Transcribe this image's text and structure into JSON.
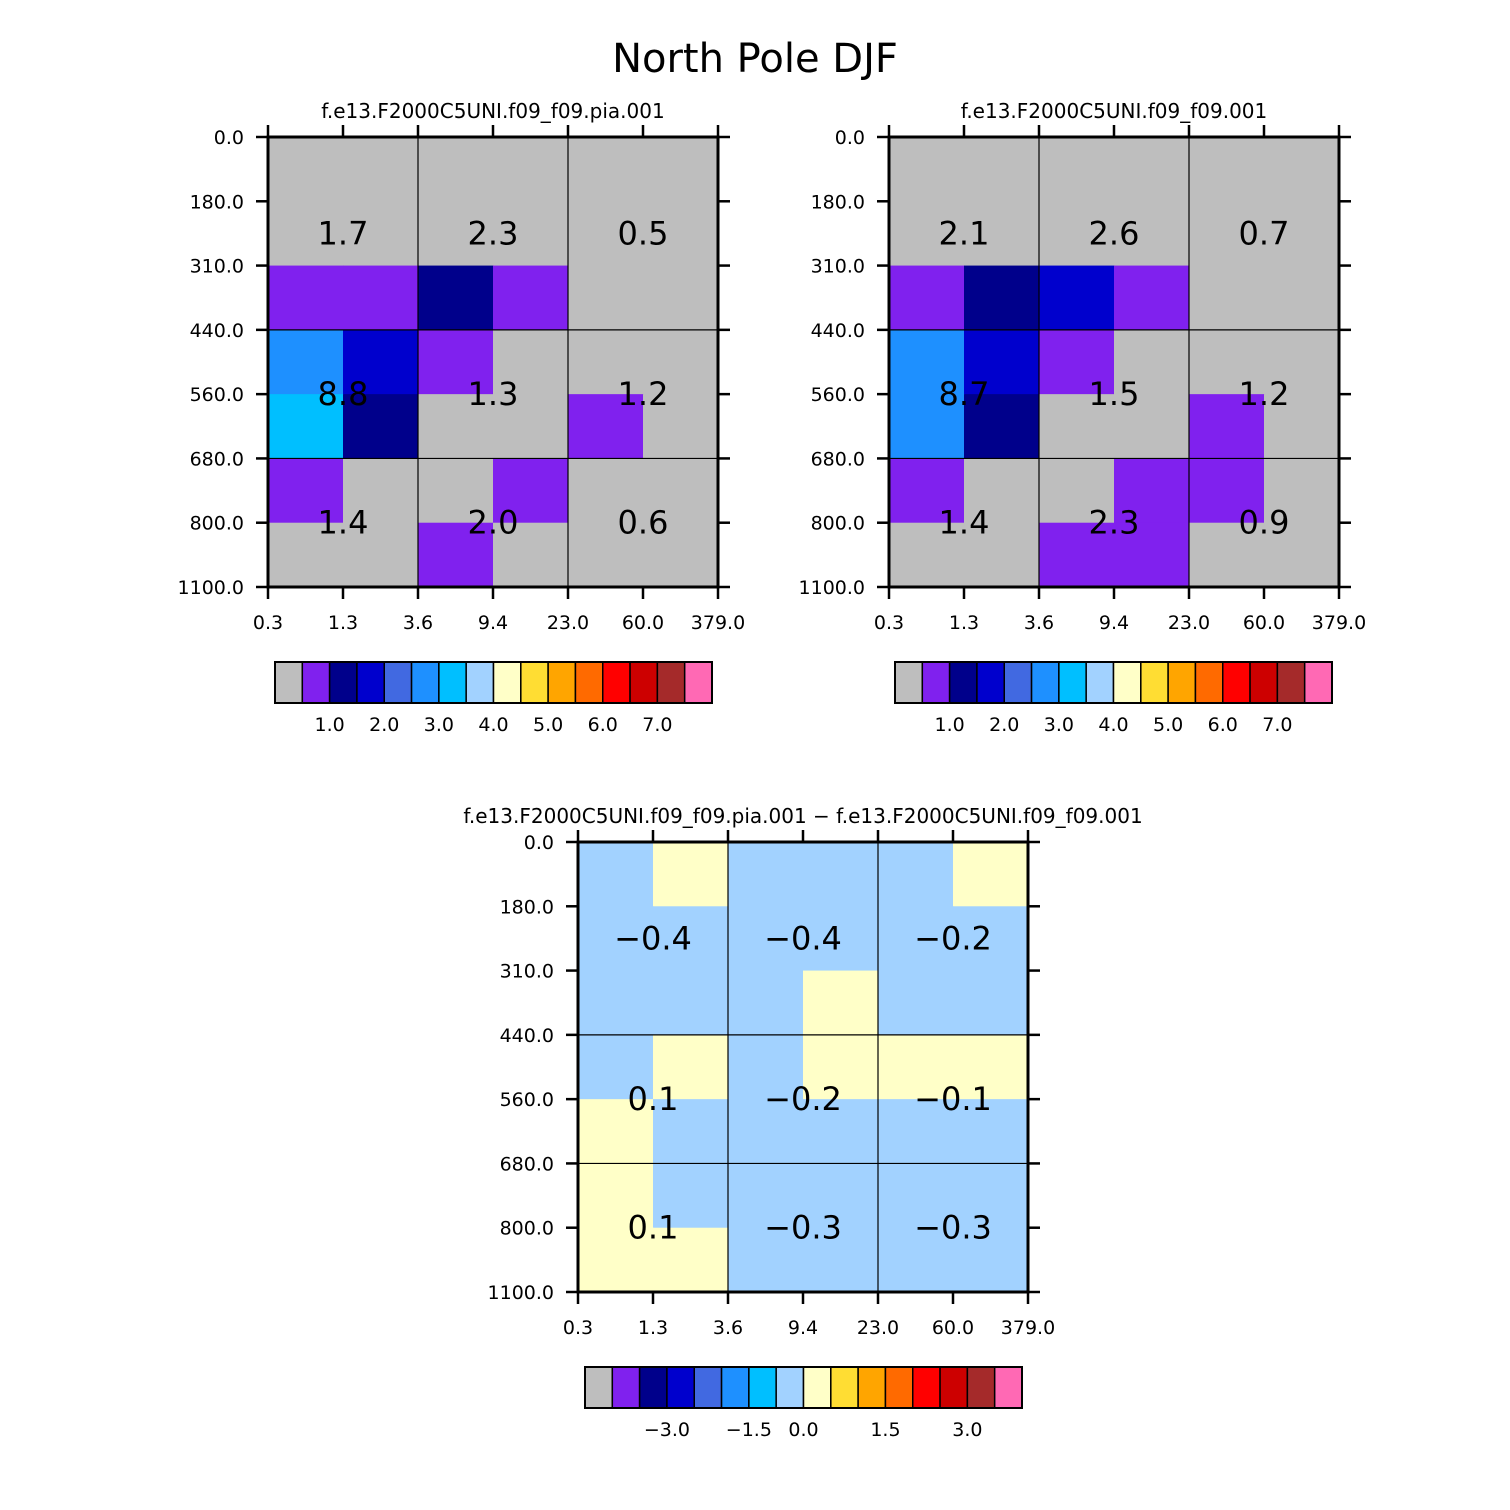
{
  "title": "North Pole DJF",
  "palette": [
    "#bebebe",
    "#8021ee",
    "#00008b",
    "#0000cd",
    "#4169e1",
    "#1e90ff",
    "#00bfff",
    "#a2d2ff",
    "#ffffc8",
    "#ffdd33",
    "#ffa500",
    "#ff6a00",
    "#ff0000",
    "#cd0000",
    "#a52a2a",
    "#ff69b4"
  ],
  "chart_data": [
    {
      "type": "heatmap",
      "title": "f.e13.F2000C5UNI.f09_f09.pia.001",
      "x_ticks": [
        "0.3",
        "1.3",
        "3.6",
        "9.4",
        "23.0",
        "60.0",
        "379.0"
      ],
      "y_ticks": [
        "0.0",
        "180.0",
        "310.0",
        "440.0",
        "560.0",
        "680.0",
        "800.0",
        "1100.0"
      ],
      "cells": [
        [
          0,
          0,
          0,
          0,
          0,
          0
        ],
        [
          0,
          0,
          0,
          0,
          0,
          0
        ],
        [
          1,
          1,
          2,
          1,
          0,
          0
        ],
        [
          5,
          3,
          1,
          0,
          0,
          0
        ],
        [
          6,
          2,
          0,
          0,
          1,
          0
        ],
        [
          1,
          0,
          0,
          1,
          0,
          0
        ],
        [
          0,
          0,
          1,
          0,
          0,
          0
        ]
      ],
      "block_values": [
        [
          "1.7",
          "2.3",
          "0.5"
        ],
        [
          "8.8",
          "1.3",
          "1.2"
        ],
        [
          "1.4",
          "2.0",
          "0.6"
        ]
      ],
      "colorbar_labels": [
        "1.0",
        "2.0",
        "3.0",
        "4.0",
        "5.0",
        "6.0",
        "7.0"
      ]
    },
    {
      "type": "heatmap",
      "title": "f.e13.F2000C5UNI.f09_f09.001",
      "x_ticks": [
        "0.3",
        "1.3",
        "3.6",
        "9.4",
        "23.0",
        "60.0",
        "379.0"
      ],
      "y_ticks": [
        "0.0",
        "180.0",
        "310.0",
        "440.0",
        "560.0",
        "680.0",
        "800.0",
        "1100.0"
      ],
      "cells": [
        [
          0,
          0,
          0,
          0,
          0,
          0
        ],
        [
          0,
          0,
          0,
          0,
          0,
          0
        ],
        [
          1,
          2,
          3,
          1,
          0,
          0
        ],
        [
          5,
          3,
          1,
          0,
          0,
          0
        ],
        [
          5,
          2,
          0,
          0,
          1,
          0
        ],
        [
          1,
          0,
          0,
          1,
          1,
          0
        ],
        [
          0,
          0,
          1,
          1,
          0,
          0
        ]
      ],
      "block_values": [
        [
          "2.1",
          "2.6",
          "0.7"
        ],
        [
          "8.7",
          "1.5",
          "1.2"
        ],
        [
          "1.4",
          "2.3",
          "0.9"
        ]
      ],
      "colorbar_labels": [
        "1.0",
        "2.0",
        "3.0",
        "4.0",
        "5.0",
        "6.0",
        "7.0"
      ]
    },
    {
      "type": "heatmap",
      "title": "f.e13.F2000C5UNI.f09_f09.pia.001 − f.e13.F2000C5UNI.f09_f09.001",
      "x_ticks": [
        "0.3",
        "1.3",
        "3.6",
        "9.4",
        "23.0",
        "60.0",
        "379.0"
      ],
      "y_ticks": [
        "0.0",
        "180.0",
        "310.0",
        "440.0",
        "560.0",
        "680.0",
        "800.0",
        "1100.0"
      ],
      "cells": [
        [
          7,
          8,
          7,
          7,
          7,
          8
        ],
        [
          7,
          7,
          7,
          7,
          7,
          7
        ],
        [
          7,
          7,
          7,
          8,
          7,
          7
        ],
        [
          7,
          8,
          7,
          8,
          8,
          8
        ],
        [
          8,
          7,
          7,
          7,
          7,
          7
        ],
        [
          8,
          7,
          7,
          7,
          7,
          7
        ],
        [
          8,
          8,
          7,
          7,
          7,
          7
        ]
      ],
      "block_values": [
        [
          "−0.4",
          "−0.4",
          "−0.2"
        ],
        [
          "0.1",
          "−0.2",
          "−0.1"
        ],
        [
          "0.1",
          "−0.3",
          "−0.3"
        ]
      ],
      "colorbar_labels": [
        "−3.0",
        "−1.5",
        "0.0",
        "1.5",
        "3.0"
      ]
    }
  ]
}
